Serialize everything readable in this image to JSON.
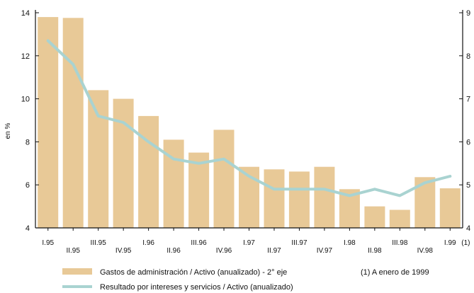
{
  "chart_data": {
    "type": "bar",
    "ylabel": "en %",
    "y_left_ticks": [
      "4",
      "6",
      "8",
      "10",
      "12",
      "14"
    ],
    "y_right_ticks": [
      "4",
      "5",
      "6",
      "7",
      "8",
      "9"
    ],
    "ylim_left": [
      4,
      14
    ],
    "ylim_right": [
      4,
      9
    ],
    "categories": [
      "I.95",
      "II.95",
      "III.95",
      "IV.95",
      "I.96",
      "II.96",
      "III.96",
      "IV.96",
      "I.97",
      "II.97",
      "III.97",
      "IV.97",
      "I.98",
      "II.98",
      "III.98",
      "IV.98",
      "I.99"
    ],
    "category_suffix": "(1)",
    "series": [
      {
        "name": "Gastos de administración / Activo (anualizado) - 2° eje",
        "kind": "bar",
        "axis": "right",
        "color": "#e8c997",
        "values": [
          8.9,
          8.88,
          7.2,
          7.0,
          6.6,
          6.05,
          5.75,
          6.28,
          5.42,
          5.36,
          5.31,
          5.42,
          4.9,
          4.5,
          4.42,
          5.18,
          4.92
        ]
      },
      {
        "name": "Resultado por intereses y servicios / Activo (anualizado)",
        "kind": "line",
        "axis": "left",
        "color": "#a9d3d1",
        "values": [
          12.7,
          11.6,
          9.2,
          8.9,
          8.0,
          7.2,
          7.0,
          7.2,
          6.4,
          5.8,
          5.8,
          5.8,
          5.5,
          5.8,
          5.5,
          6.1,
          6.4
        ]
      }
    ],
    "footnote": "(1) A enero de 1999",
    "grid": false,
    "legend_position": "bottom"
  }
}
